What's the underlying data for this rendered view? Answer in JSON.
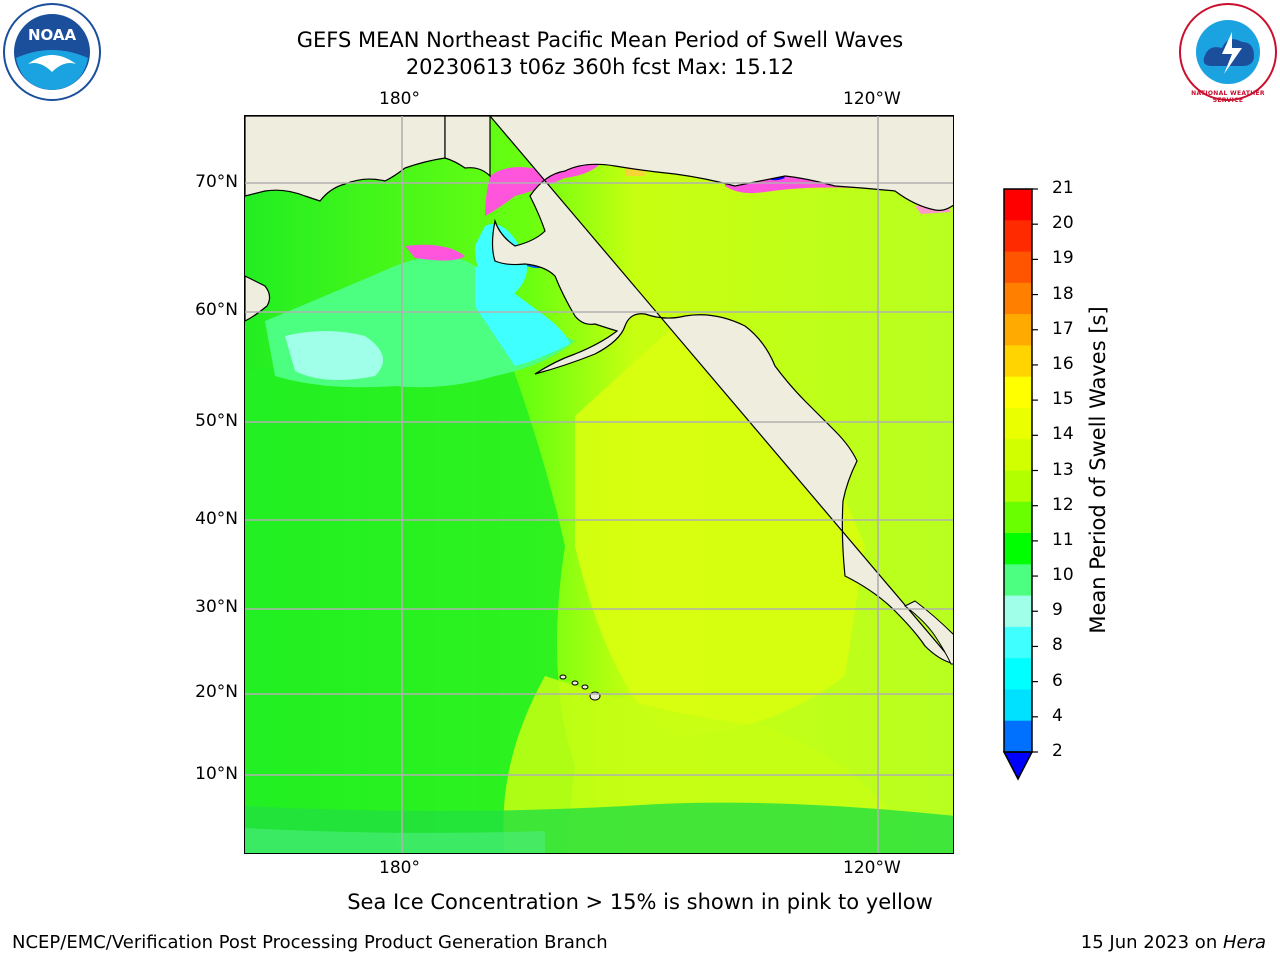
{
  "header": {
    "title_line_1": "GEFS MEAN Northeast Pacific Mean Period of Swell Waves",
    "title_line_2": "20230613 t06z 360h fcst   Max: 15.12"
  },
  "map": {
    "top_lon_labels": [
      "180°",
      "120°W"
    ],
    "bottom_lon_labels": [
      "180°",
      "120°W"
    ],
    "lat_labels": [
      "70°N",
      "60°N",
      "50°N",
      "40°N",
      "30°N",
      "20°N",
      "10°N"
    ],
    "land_color": "#efedde",
    "grid_color": "#b0b0b0"
  },
  "colorbar": {
    "label": "Mean Period of Swell Waves [s]",
    "ticks": [
      "21",
      "20",
      "19",
      "18",
      "17",
      "16",
      "15",
      "14",
      "13",
      "12",
      "11",
      "10",
      "9",
      "8",
      "6",
      "4",
      "2"
    ],
    "colors": [
      "#ff0000",
      "#ff2a00",
      "#ff5500",
      "#ff8000",
      "#ffaa00",
      "#ffd400",
      "#ffff00",
      "#eaff00",
      "#d2ff00",
      "#b2ff00",
      "#6aff00",
      "#00ff00",
      "#4dff80",
      "#a0ffe8",
      "#40ffff",
      "#00ffff",
      "#00e0ff",
      "#0070ff",
      "#0000ff"
    ]
  },
  "footer": {
    "note": "Sea Ice Concentration > 15% is shown in pink to yellow",
    "left": "NCEP/EMC/Verification Post Processing Product Generation Branch",
    "right_date": "15 Jun 2023 on ",
    "right_host": "Hera"
  },
  "logos": {
    "noaa_text": "NOAA",
    "nws_text": "NATIONAL WEATHER SERVICE"
  }
}
